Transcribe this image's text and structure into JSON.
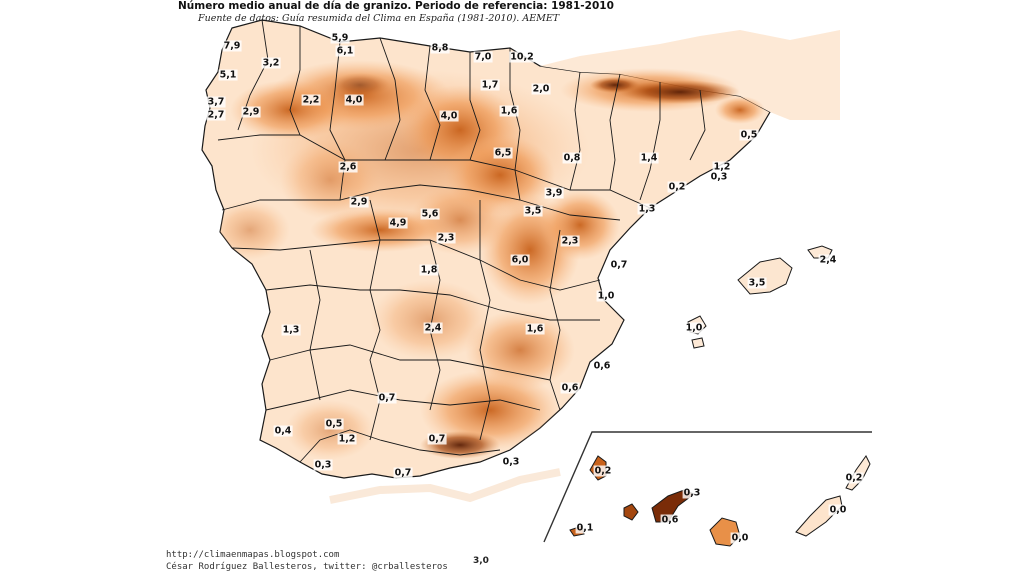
{
  "title": "Número medio anual de día de granizo. Periodo de referencia: 1981-2010",
  "subtitle": "Fuente de datos: Guía resumida del Clima en España (1981-2010). AEMET",
  "credit_url": "http://climaenmapas.blogspot.com",
  "credit_author": "César Rodríguez Ballesteros, twitter: @crballesteros",
  "scale_value": "3,0",
  "colors": {
    "shade_light": "#fde9d6",
    "shade_mid": "#f6b37c",
    "shade_dark": "#c8621c",
    "shade_peak": "#5a1e04",
    "border": "#1a1a1a",
    "sea": "#ffffff"
  },
  "labels": {
    "l01": "7,9",
    "l02": "5,9",
    "l03": "6,1",
    "l04": "8,8",
    "l05": "7,0",
    "l06": "10,2",
    "l07": "3,2",
    "l08": "5,1",
    "l09": "2,2",
    "l10": "4,0",
    "l11": "1,7",
    "l12": "2,0",
    "l13": "3,7",
    "l14": "2,7",
    "l15": "2,9",
    "l16": "4,0",
    "l17": "1,6",
    "l18": "0,5",
    "l19": "6,5",
    "l20": "0,8",
    "l21": "1,4",
    "l22": "2,6",
    "l23": "1,2",
    "l24": "0,3",
    "l25": "0,2",
    "l26": "3,9",
    "l27": "2,9",
    "l28": "4,9",
    "l29": "5,6",
    "l30": "3,5",
    "l31": "1,3",
    "l32": "2,3",
    "l33": "2,3",
    "l34": "6,0",
    "l35": "2,4",
    "l36": "0,7",
    "l37": "1,8",
    "l38": "3,5",
    "l39": "1,0",
    "l40": "1,3",
    "l41": "2,4",
    "l42": "1,6",
    "l43": "1,0",
    "l44": "0,6",
    "l45": "0,6",
    "l46": "0,7",
    "l47": "0,5",
    "l48": "0,4",
    "l49": "1,2",
    "l50": "0,7",
    "l51": "0,3",
    "l52": "0,7",
    "l53": "0,3",
    "l54": "0,2",
    "l55": "0,3",
    "l56": "0,2",
    "l57": "0,1",
    "l58": "0,6",
    "l59": "0,0",
    "l60": "0,0"
  }
}
